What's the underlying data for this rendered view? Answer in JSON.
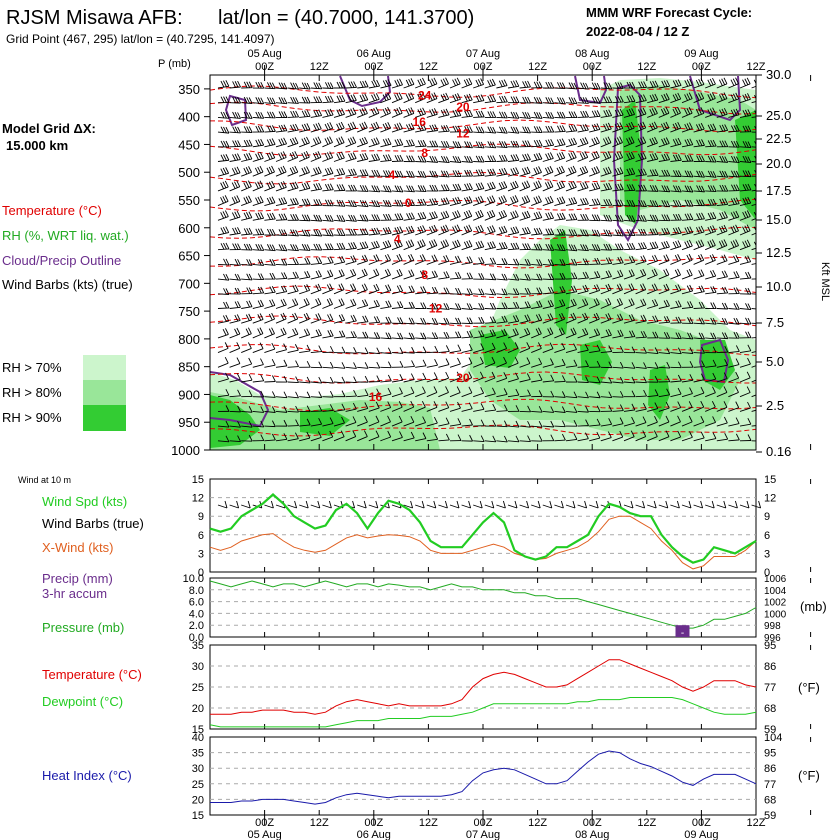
{
  "header": {
    "station": "RJSM Misawa AFB:",
    "latlon": "lat/lon = (40.7000, 141.3700)",
    "grid_point": "Grid Point (467, 295) lat/lon = (40.7295, 141.4097)",
    "forecast_title": "MMM WRF Forecast Cycle:",
    "forecast_cycle": "2022-08-04 / 12  Z"
  },
  "left_panel": {
    "grid_label": "Model Grid ΔX:",
    "grid_value": "15.000 km",
    "legend": [
      {
        "text": "Temperature (°C)",
        "color": "#e00000"
      },
      {
        "text": "RH (%, WRT liq. wat.)",
        "color": "#22aa22"
      },
      {
        "text": "Cloud/Precip Outline",
        "color": "#6a2d8c"
      },
      {
        "text": "Wind Barbs (kts) (true)",
        "color": "#000000"
      }
    ],
    "rh_levels": [
      {
        "text": "RH > 70%",
        "color": "#ccf5cc"
      },
      {
        "text": "RH > 80%",
        "color": "#99e699"
      },
      {
        "text": "RH > 90%",
        "color": "#33cc33"
      }
    ]
  },
  "time_axis": {
    "dates": [
      "05 Aug",
      "06 Aug",
      "07 Aug",
      "08 Aug",
      "09 Aug"
    ],
    "hours": [
      "00Z",
      "12Z",
      "00Z",
      "12Z",
      "00Z",
      "12Z",
      "00Z",
      "12Z",
      "00Z",
      "12Z"
    ]
  },
  "colors": {
    "temp": "#e00000",
    "rh_light": "#ccf5cc",
    "rh_mid": "#99e699",
    "rh_dark": "#33cc33",
    "cloud": "#6a2d8c",
    "wind_speed": "#22cc22",
    "x_wind": "#e06020",
    "pressure": "#22aa22",
    "precip": "#6a2d8c",
    "dewpoint": "#22cc22",
    "heat_index": "#1a1aaa"
  },
  "chart_data": [
    {
      "type": "heatmap",
      "name": "cross-section",
      "y_axis_title": "P (mb)",
      "pressure_ticks": [
        350,
        400,
        450,
        500,
        550,
        600,
        650,
        700,
        750,
        800,
        850,
        900,
        950,
        1000
      ],
      "right_axis_title": "Kft MSL",
      "height_ticks": [
        "30.0",
        "25.0",
        "22.5",
        "20.0",
        "17.5",
        "15.0",
        "12.5",
        "10.0",
        "7.5",
        "5.0",
        "2.5",
        "0.16"
      ],
      "temperature_labels": [
        {
          "text": "24",
          "p": 362,
          "t": 0.21
        },
        {
          "text": "20",
          "p": 383,
          "t": 0.28
        },
        {
          "text": "16",
          "p": 410,
          "t": 0.2
        },
        {
          "text": "12",
          "p": 430,
          "t": 0.28
        },
        {
          "text": "8",
          "p": 465,
          "t": 0.21
        },
        {
          "text": "4",
          "p": 505,
          "t": 0.15
        },
        {
          "text": "0",
          "p": 555,
          "t": 0.18
        },
        {
          "text": "4",
          "p": 620,
          "t": 0.16
        },
        {
          "text": "8",
          "p": 685,
          "t": 0.21
        },
        {
          "text": "12",
          "p": 745,
          "t": 0.23
        },
        {
          "text": "20",
          "p": 870,
          "t": 0.28
        },
        {
          "text": "16",
          "p": 905,
          "t": 0.12
        }
      ]
    },
    {
      "type": "line",
      "name": "wind-at-10m",
      "panel_title": "Wind at 10 m",
      "labels": [
        "Wind Spd (kts)",
        "Wind Barbs (true)",
        "X-Wind (kts)"
      ],
      "ylim": [
        0,
        15
      ],
      "yticks": [
        0,
        3,
        6,
        9,
        12,
        15
      ],
      "wind_speed": [
        7,
        6.5,
        7,
        9,
        10,
        11,
        12.5,
        11,
        9,
        8,
        7,
        7.5,
        10,
        11,
        9.5,
        7,
        9.5,
        11.5,
        11,
        10,
        8,
        5,
        4,
        4,
        4,
        6,
        8,
        9.5,
        8,
        3.5,
        2.5,
        2,
        2.5,
        4,
        4,
        5,
        6,
        9,
        11,
        10.5,
        9.5,
        9,
        9,
        6,
        4,
        2.5,
        1.5,
        2,
        4,
        3.5,
        3,
        4,
        5
      ],
      "x_wind": [
        4,
        3.5,
        4,
        5,
        5.5,
        6,
        6.2,
        5,
        4,
        3.5,
        3.2,
        3.5,
        4.5,
        5.5,
        6,
        5.5,
        5.8,
        6,
        5.9,
        5.7,
        5,
        3.5,
        3,
        3,
        3,
        3.5,
        4,
        4.5,
        4,
        3,
        2.5,
        2,
        2.2,
        3,
        3.5,
        4,
        5,
        6.5,
        8.5,
        9,
        9,
        8,
        7,
        5,
        3.5,
        1.5,
        0.5,
        1,
        2.5,
        2.5,
        2.5,
        3.5,
        5
      ]
    },
    {
      "type": "line",
      "name": "precip-pressure",
      "labels": [
        "Precip (mm)",
        "3-hr accum",
        "Pressure (mb)"
      ],
      "precip_ylim": [
        0,
        10
      ],
      "precip_ticks": [
        "0.0",
        "2.0",
        "4.0",
        "6.0",
        "8.0",
        "10.0"
      ],
      "pressure_ylim": [
        996,
        1006
      ],
      "pressure_ticks": [
        996,
        998,
        1000,
        1002,
        1004,
        1006
      ],
      "unit": "(mb)",
      "pressure": [
        1005.5,
        1005,
        1004.5,
        1005,
        1005.5,
        1005,
        1004.5,
        1005,
        1005,
        1004.5,
        1005,
        1005.5,
        1005,
        1004.5,
        1005,
        1005,
        1004.5,
        1005,
        1004.8,
        1004.5,
        1004.5,
        1004,
        1004.5,
        1005,
        1004.5,
        1004.5,
        1004,
        1004,
        1004,
        1003.5,
        1003.5,
        1003,
        1003,
        1002.5,
        1002.5,
        1002.5,
        1002,
        1001.5,
        1001,
        1000.5,
        1000,
        999.5,
        999,
        998.5,
        998,
        997.5,
        997.5,
        998,
        999,
        999,
        999.5,
        1000,
        1001
      ],
      "precip_bar": {
        "index": 45,
        "value": 2.0,
        "label": "-"
      }
    },
    {
      "type": "line",
      "name": "temperature-dewpoint",
      "labels": [
        "Temperature (°C)",
        "Dewpoint (°C)"
      ],
      "ylim": [
        15,
        35
      ],
      "yticks": [
        15,
        20,
        25,
        30,
        35
      ],
      "right_ticks": [
        59,
        68,
        77,
        86,
        95
      ],
      "unit": "(°F)",
      "temperature": [
        18.5,
        18.5,
        18.5,
        19,
        19,
        19.5,
        19.5,
        19.5,
        19,
        19,
        18.5,
        19,
        20.5,
        21.5,
        22,
        21.5,
        21,
        20.5,
        21,
        20.5,
        20.5,
        20.5,
        20.5,
        21,
        22,
        25,
        27,
        28,
        28.5,
        28,
        27,
        26,
        25,
        25,
        25.5,
        27,
        28.5,
        30,
        31.5,
        31.5,
        30.5,
        29.5,
        28.5,
        27.5,
        26.5,
        25,
        24,
        25,
        26.5,
        26.5,
        26.5,
        25.5,
        25
      ],
      "dewpoint": [
        16,
        15.5,
        15.5,
        15.5,
        15.5,
        15.5,
        15.5,
        15.5,
        15.5,
        15.5,
        15.5,
        15.5,
        16,
        16.5,
        17,
        17,
        17,
        17.5,
        17.5,
        17.5,
        17.5,
        18,
        18,
        18,
        18.5,
        19,
        20,
        21,
        21,
        21,
        21,
        21,
        21,
        21,
        21,
        21.5,
        21.5,
        22,
        22,
        22,
        22.5,
        22.5,
        22.5,
        22.5,
        22.5,
        22,
        21,
        20,
        19,
        18.5,
        18.5,
        18.5,
        19
      ]
    },
    {
      "type": "line",
      "name": "heat-index",
      "labels": [
        "Heat Index (°C)"
      ],
      "ylim": [
        15,
        40
      ],
      "yticks": [
        15,
        20,
        25,
        30,
        35,
        40
      ],
      "right_ticks": [
        59,
        68,
        77,
        86,
        95,
        104
      ],
      "unit": "(°F)",
      "heat_index": [
        19,
        19,
        19,
        19.5,
        19.5,
        20,
        20,
        20,
        19.5,
        19,
        18.5,
        19,
        20.5,
        21.5,
        22,
        21.5,
        21,
        20.5,
        21,
        21,
        21,
        21,
        21,
        21.5,
        22.5,
        26,
        28.5,
        29.5,
        30,
        29.5,
        28,
        26.5,
        25,
        25,
        26,
        29,
        32,
        34.5,
        35.5,
        35,
        33,
        31.5,
        30.5,
        29,
        27.5,
        25.5,
        24.5,
        26.5,
        28,
        28,
        28,
        26.5,
        25
      ]
    }
  ]
}
